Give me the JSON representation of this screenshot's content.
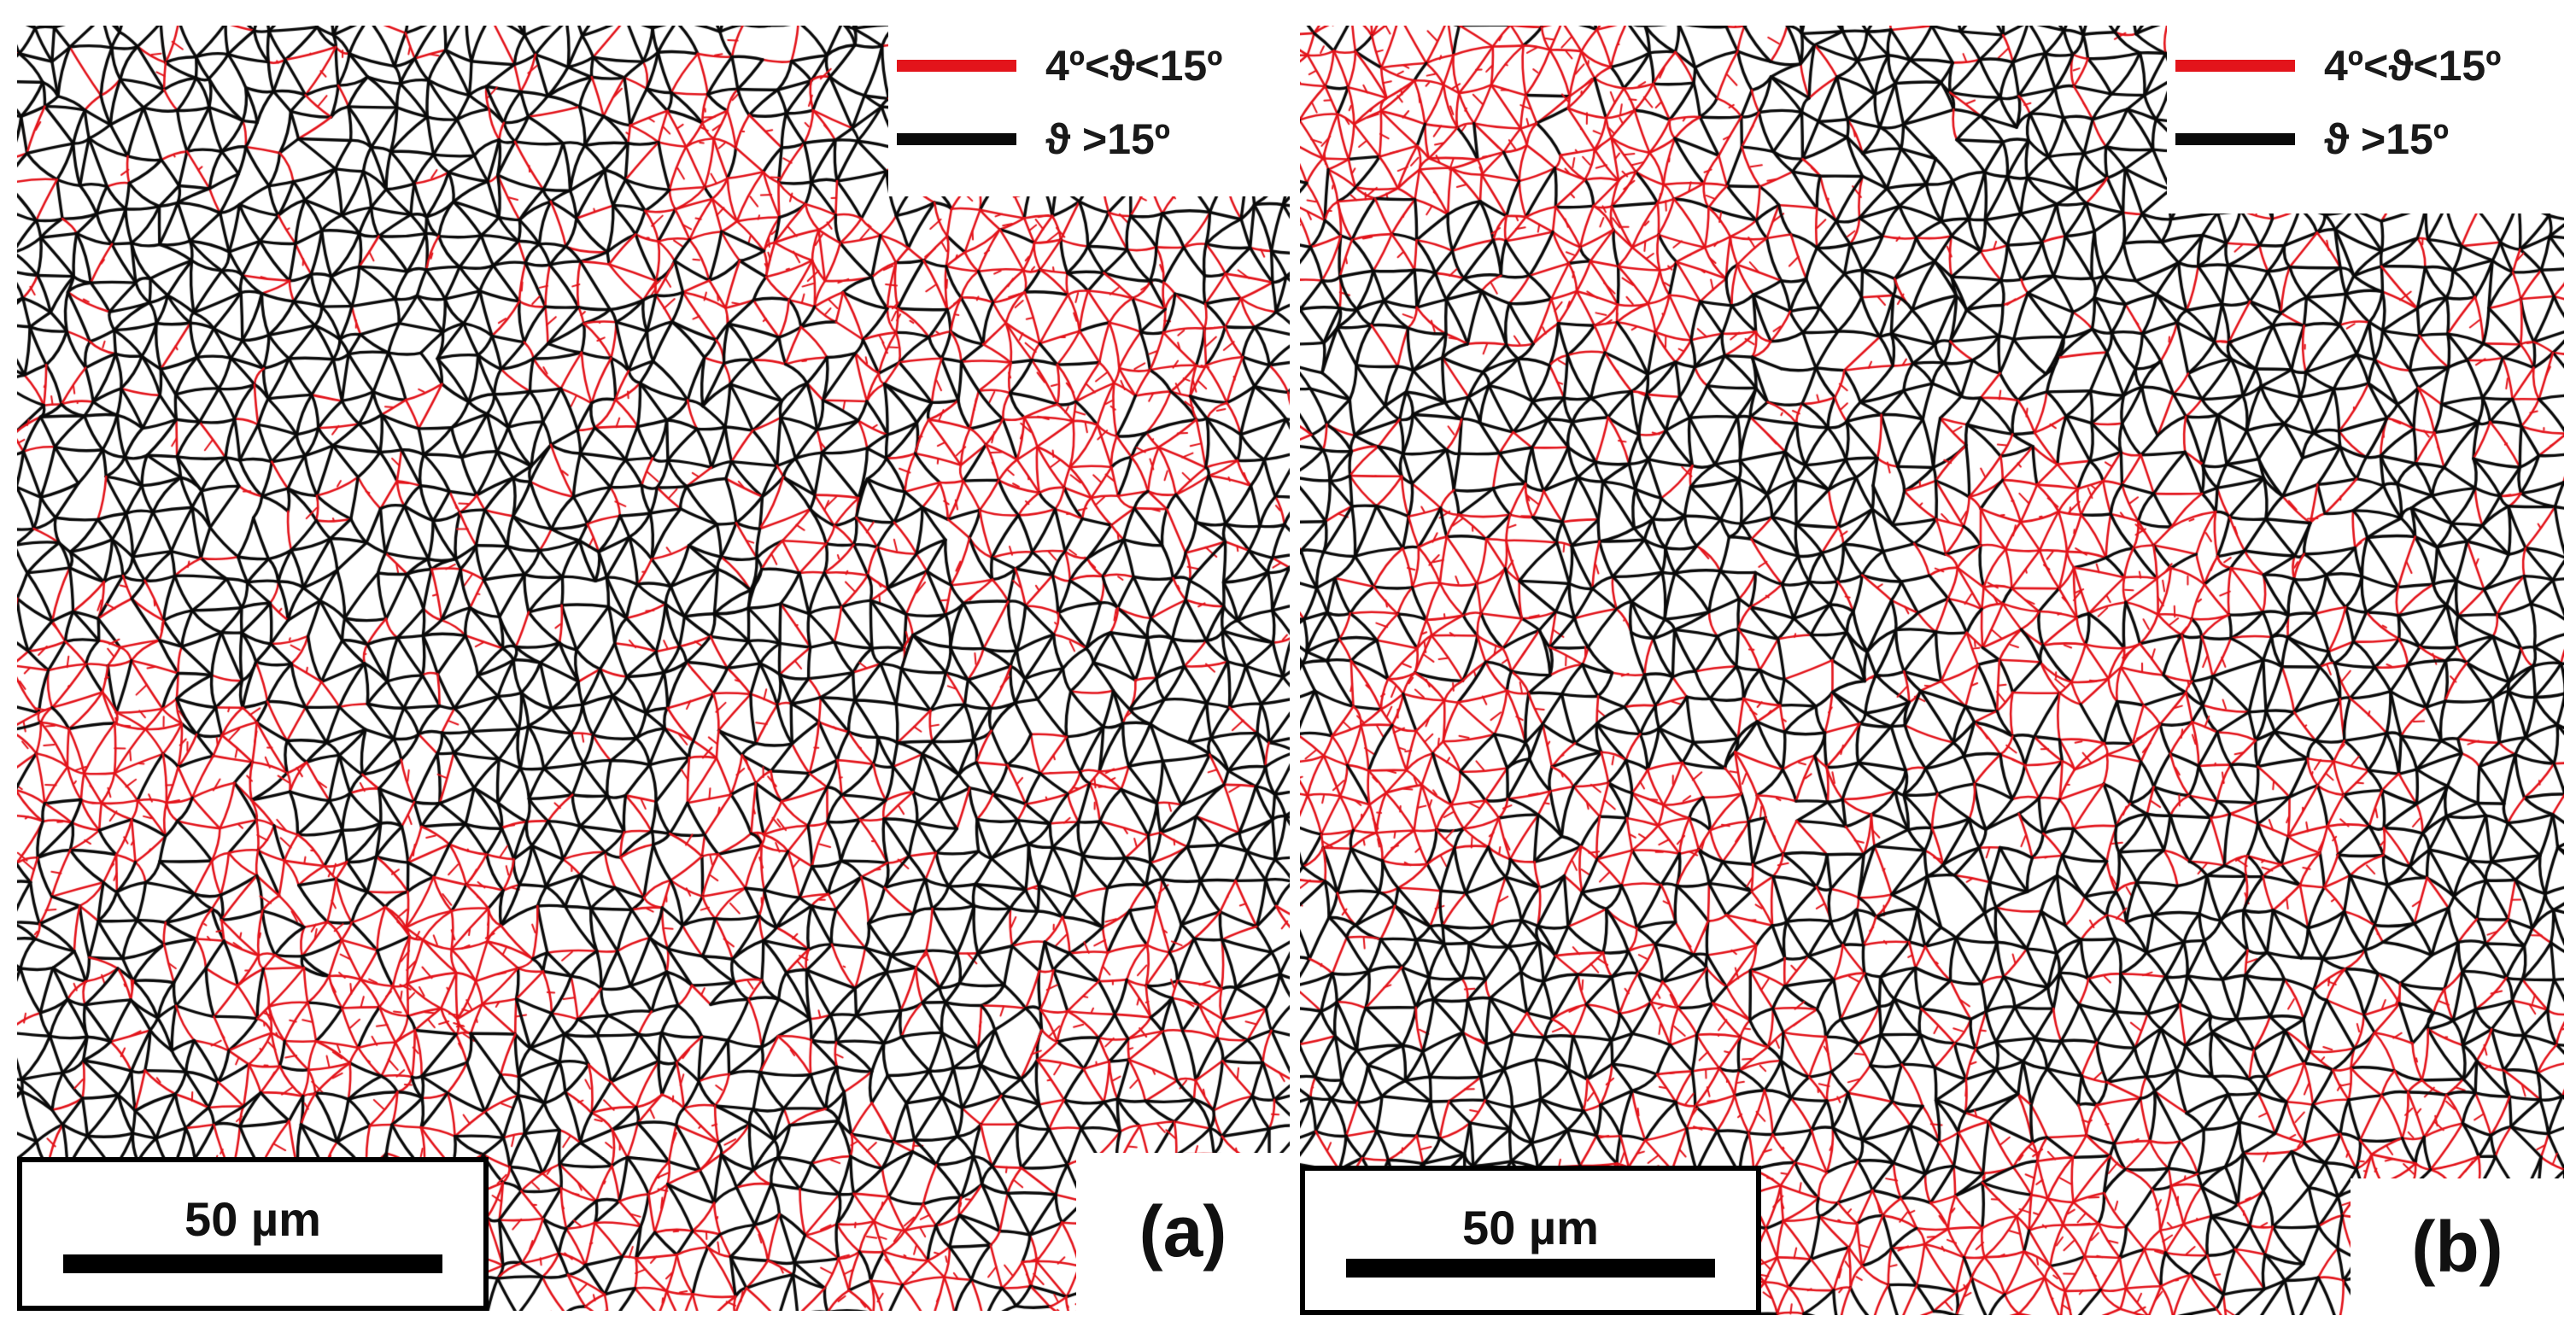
{
  "colors": {
    "low_angle_boundary": "#e3141b",
    "high_angle_boundary": "#0a0a0a",
    "background": "#ffffff"
  },
  "panels": [
    {
      "id": "a",
      "label": "(a)",
      "legend": [
        {
          "text": "4º<ϑ<15º",
          "color_key": "low_angle_boundary"
        },
        {
          "text": "ϑ >15º",
          "color_key": "high_angle_boundary"
        }
      ],
      "scale_bar": "50 µm"
    },
    {
      "id": "b",
      "label": "(b)",
      "legend": [
        {
          "text": "4º<ϑ<15º",
          "color_key": "low_angle_boundary"
        },
        {
          "text": "ϑ >15º",
          "color_key": "high_angle_boundary"
        }
      ],
      "scale_bar": "50 µm"
    }
  ]
}
